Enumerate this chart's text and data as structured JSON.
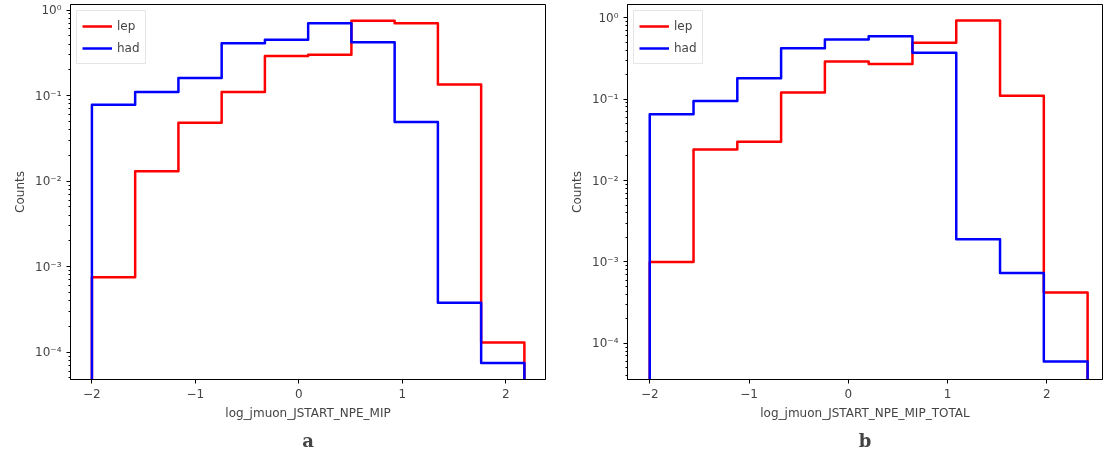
{
  "chart_data": [
    {
      "type": "histogram",
      "xlabel": "log_jmuon_JSTART_NPE_MIP",
      "ylabel": "Counts",
      "annotations": [
        "a"
      ],
      "log": "y",
      "grid": false,
      "legend": "top left",
      "bins": [
        -2,
        -1.582,
        -1.164,
        -0.746,
        -0.328,
        0.09,
        0.508,
        0.926,
        1.344,
        1.762,
        2.18
      ],
      "series": [
        {
          "name": "lep",
          "color": "#ff0000",
          "values": [
            0.00075,
            0.013,
            0.048,
            0.11,
            0.29,
            0.3,
            0.75,
            0.7,
            0.135,
            0.00013
          ]
        },
        {
          "name": "had",
          "color": "#0000ff",
          "values": [
            0.078,
            0.11,
            0.16,
            0.41,
            0.45,
            0.7,
            0.42,
            0.049,
            0.00038,
            7.5e-05
          ]
        }
      ],
      "xlim": [
        -2.207,
        2.384
      ],
      "ylim": [
        4.8e-05,
        1.16
      ],
      "xticks": [
        -2,
        -1,
        0,
        1,
        2
      ],
      "yticks": [
        {
          "value": 0.0001,
          "label": "10⁻⁴"
        },
        {
          "value": 0.001,
          "label": "10⁻³"
        },
        {
          "value": 0.01,
          "label": "10⁻²"
        },
        {
          "value": 0.1,
          "label": "10⁻¹"
        },
        {
          "value": 1,
          "label": "10⁰"
        }
      ]
    },
    {
      "type": "histogram",
      "xlabel": "log_jmuon_JSTART_NPE_MIP_TOTAL",
      "ylabel": "Counts",
      "annotations": [
        "b"
      ],
      "log": "y",
      "grid": false,
      "legend": "top left",
      "bins": [
        -2,
        -1.559,
        -1.118,
        -0.677,
        -0.236,
        0.205,
        0.646,
        1.087,
        1.528,
        1.969,
        2.41
      ],
      "series": [
        {
          "name": "lep",
          "color": "#ff0000",
          "values": [
            0.001,
            0.024,
            0.03,
            0.12,
            0.29,
            0.27,
            0.49,
            0.92,
            0.11,
            0.00042
          ]
        },
        {
          "name": "had",
          "color": "#0000ff",
          "values": [
            0.065,
            0.095,
            0.18,
            0.42,
            0.54,
            0.59,
            0.37,
            0.0019,
            0.00073,
            6e-05
          ]
        }
      ],
      "xlim": [
        -2.224,
        2.56
      ],
      "ylim": [
        3.6e-05,
        1.45
      ],
      "xticks": [
        -2,
        -1,
        0,
        1,
        2
      ],
      "yticks": [
        {
          "value": 0.0001,
          "label": "10⁻⁴"
        },
        {
          "value": 0.001,
          "label": "10⁻³"
        },
        {
          "value": 0.01,
          "label": "10⁻²"
        },
        {
          "value": 0.1,
          "label": "10⁻¹"
        },
        {
          "value": 1,
          "label": "10⁰"
        }
      ]
    }
  ]
}
